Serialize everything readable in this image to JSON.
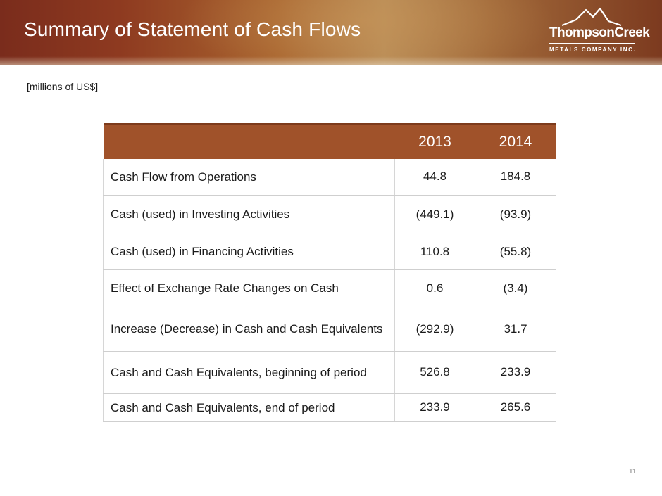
{
  "header": {
    "title": "Summary of Statement of Cash Flows",
    "logo": {
      "name": "ThompsonCreek",
      "subtitle": "METALS COMPANY INC.",
      "icon": "mountain-icon"
    }
  },
  "units_note": "[millions of US$]",
  "table": {
    "columns": [
      "",
      "2013",
      "2014"
    ],
    "rows": [
      {
        "label": "Cash Flow from Operations",
        "v2013": "44.8",
        "v2014": "184.8"
      },
      {
        "label": "Cash (used) in Investing Activities",
        "v2013": "(449.1)",
        "v2014": "(93.9)"
      },
      {
        "label": "Cash (used) in Financing Activities",
        "v2013": "110.8",
        "v2014": "(55.8)"
      },
      {
        "label": "Effect of Exchange Rate Changes on Cash",
        "v2013": "0.6",
        "v2014": "(3.4)"
      },
      {
        "label": "Increase (Decrease) in Cash and Cash Equivalents",
        "v2013": "(292.9)",
        "v2014": "31.7"
      },
      {
        "label": "Cash and Cash Equivalents, beginning of period",
        "v2013": "526.8",
        "v2014": "233.9"
      },
      {
        "label": "Cash and Cash Equivalents, end of period",
        "v2013": "233.9",
        "v2014": "265.6"
      }
    ]
  },
  "page_number": "11",
  "colors": {
    "banner": "#8e3a20",
    "table_header": "#a0522a"
  }
}
